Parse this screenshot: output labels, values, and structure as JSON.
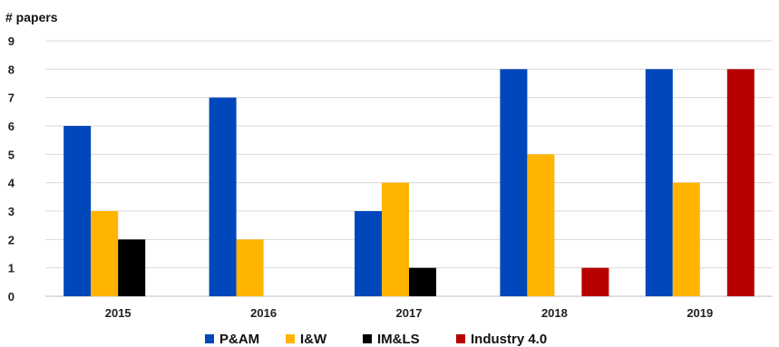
{
  "chart_data": {
    "type": "bar",
    "ylabel": "# papers",
    "xlabel": "",
    "title": "",
    "ylim": [
      0,
      9
    ],
    "yticks": [
      0,
      1,
      2,
      3,
      4,
      5,
      6,
      7,
      8,
      9
    ],
    "categories": [
      "2015",
      "2016",
      "2017",
      "2018",
      "2019"
    ],
    "series": [
      {
        "name": "P&AM",
        "color": "#0047BB",
        "values": [
          6,
          7,
          3,
          8,
          8
        ]
      },
      {
        "name": "I&W",
        "color": "#FFB400",
        "values": [
          3,
          2,
          4,
          5,
          4
        ]
      },
      {
        "name": "IM&LS",
        "color": "#000000",
        "values": [
          2,
          0,
          1,
          0,
          0
        ]
      },
      {
        "name": "Industry 4.0",
        "color": "#B80000",
        "values": [
          0,
          0,
          0,
          1,
          8
        ]
      }
    ],
    "grid": true,
    "legend_position": "bottom"
  }
}
